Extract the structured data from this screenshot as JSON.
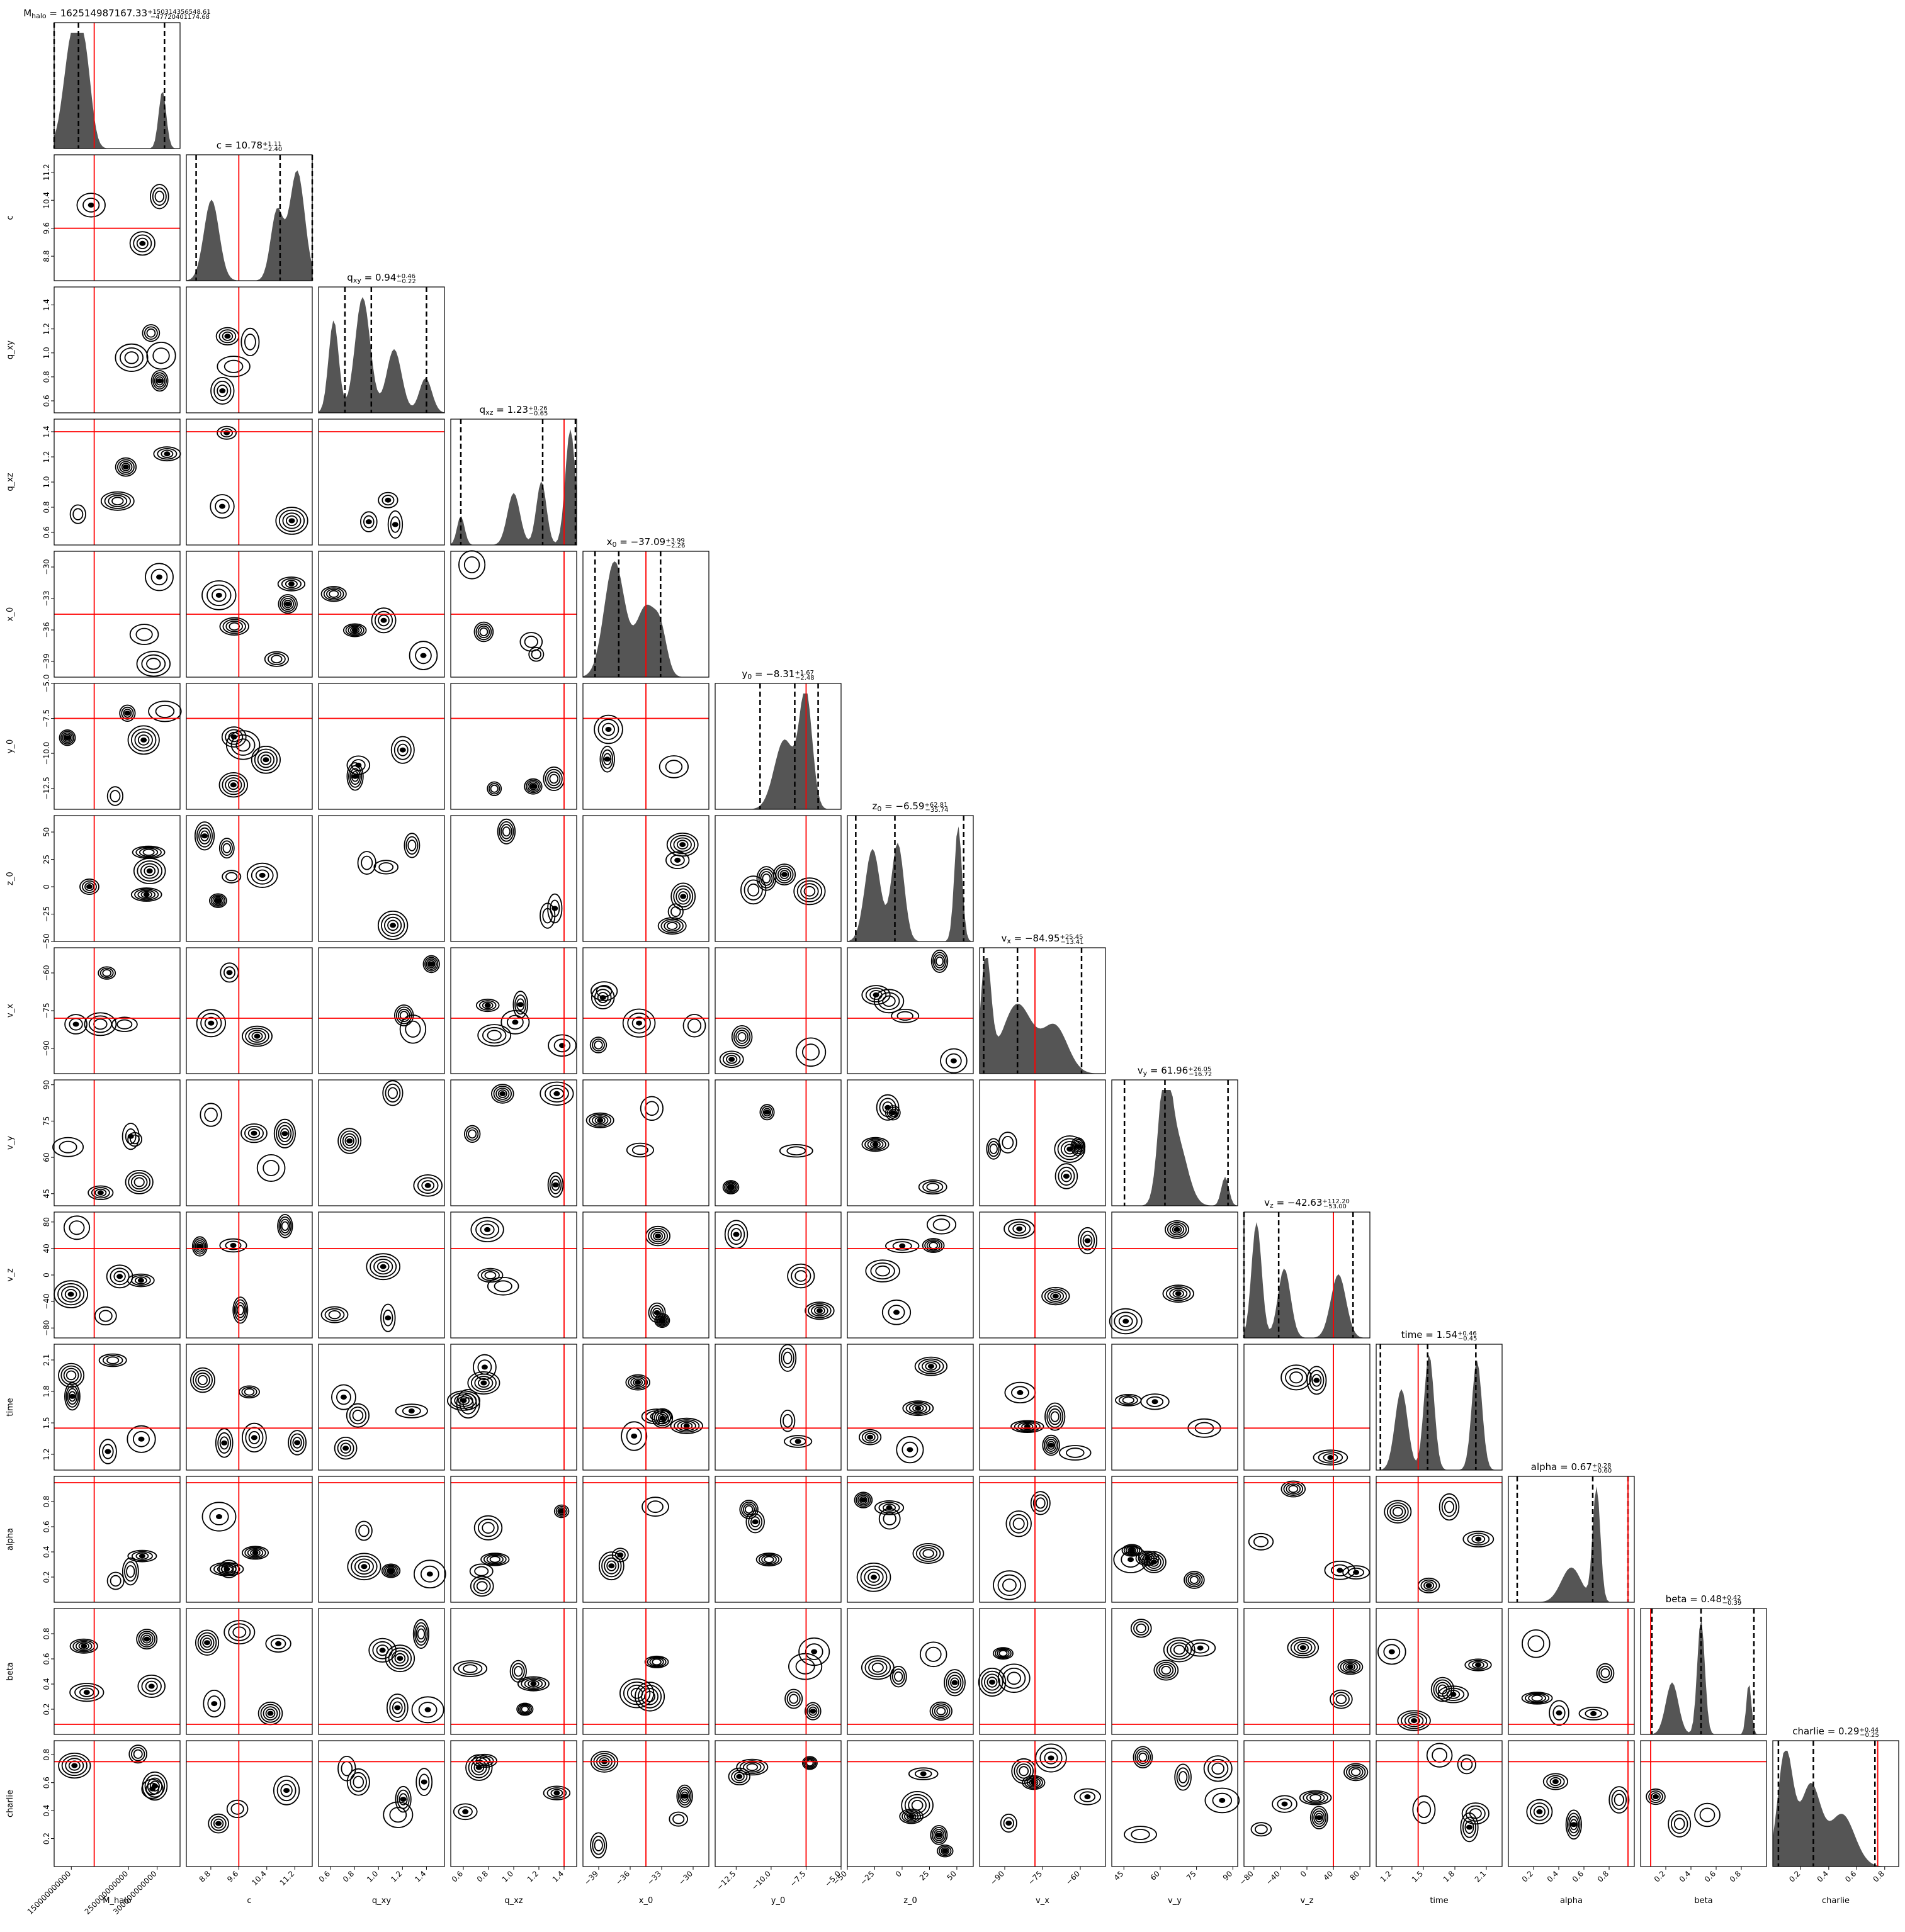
{
  "chart_data": {
    "type": "corner",
    "n_params": 14,
    "parameters": [
      {
        "name": "M_halo",
        "label": "M$_{halo}$",
        "range": [
          120000000000,
          340000000000
        ],
        "truth": 190000000000,
        "title": {
          "pre": "M",
          "sub": "halo",
          "text": " = 162514987167.33",
          "sup": "+150314356548.61",
          "inf": "−47720401174.68"
        },
        "quantiles": [
          114794585992.65,
          162514987167.33,
          312829343715.94
        ],
        "yticks": [],
        "xticks": [
          150000000000,
          250000000000,
          300000000000
        ],
        "xticklabels": [
          "150000000000",
          "250000000000",
          "300000000000"
        ],
        "modes": [
          [
            0.15,
            0.07,
            1.0
          ],
          [
            0.25,
            0.05,
            0.55
          ],
          [
            0.86,
            0.03,
            0.5
          ]
        ]
      },
      {
        "name": "c",
        "label": "c",
        "range": [
          8.1,
          11.7
        ],
        "truth": 9.6,
        "title": {
          "pre": "c",
          "sub": "",
          "text": " = 10.78",
          "sup": "+1.11",
          "inf": "−2.40"
        },
        "quantiles": [
          8.38,
          10.78,
          11.89
        ],
        "yticks": [
          8.8,
          9.6,
          10.4,
          11.2
        ],
        "yticklabels": [
          "8.8",
          "9.6",
          "10.4",
          "11.2"
        ],
        "xticks": [
          8.8,
          9.6,
          10.4,
          11.2
        ],
        "xticklabels": [
          "8.8",
          "9.6",
          "10.4",
          "11.2"
        ],
        "modes": [
          [
            0.2,
            0.06,
            0.7
          ],
          [
            0.72,
            0.05,
            0.6
          ],
          [
            0.88,
            0.06,
            0.95
          ]
        ]
      },
      {
        "name": "q_xy",
        "label": "q$_{xy}$",
        "range": [
          0.5,
          1.55
        ],
        "truth": null,
        "title": {
          "pre": "q",
          "sub": "xy",
          "text": " = 0.94",
          "sup": "+0.46",
          "inf": "−0.22"
        },
        "quantiles": [
          0.72,
          0.94,
          1.4
        ],
        "yticks": [
          0.6,
          0.8,
          1.0,
          1.2,
          1.4
        ],
        "yticklabels": [
          "0.6",
          "0.8",
          "1.0",
          "1.2",
          "1.4"
        ],
        "xticks": [
          0.6,
          0.8,
          1.0,
          1.2,
          1.4
        ],
        "xticklabels": [
          "0.6",
          "0.8",
          "1.0",
          "1.2",
          "1.4"
        ],
        "modes": [
          [
            0.12,
            0.04,
            0.8
          ],
          [
            0.35,
            0.06,
            1.0
          ],
          [
            0.6,
            0.06,
            0.55
          ],
          [
            0.85,
            0.05,
            0.3
          ]
        ]
      },
      {
        "name": "q_xz",
        "label": "q$_{xz}$",
        "range": [
          0.5,
          1.5
        ],
        "truth": 1.4,
        "title": {
          "pre": "q",
          "sub": "xz",
          "text": " = 1.23",
          "sup": "+0.26",
          "inf": "−0.65"
        },
        "quantiles": [
          0.58,
          1.23,
          1.49
        ],
        "yticks": [
          0.6,
          0.8,
          1.0,
          1.2,
          1.4
        ],
        "yticklabels": [
          "0.6",
          "0.8",
          "1.0",
          "1.2",
          "1.4"
        ],
        "xticks": [
          0.6,
          0.8,
          1.0,
          1.2,
          1.4
        ],
        "xticklabels": [
          "0.6",
          "0.8",
          "1.0",
          "1.2",
          "1.4"
        ],
        "modes": [
          [
            0.08,
            0.03,
            0.25
          ],
          [
            0.5,
            0.05,
            0.45
          ],
          [
            0.72,
            0.04,
            0.55
          ],
          [
            0.95,
            0.04,
            1.0
          ]
        ]
      },
      {
        "name": "x_0",
        "label": "x$_0$",
        "range": [
          -40.5,
          -28.5
        ],
        "truth": -34.5,
        "title": {
          "pre": "x",
          "sub": "0",
          "text": " = −37.09",
          "sup": "+3.99",
          "inf": "−2.26"
        },
        "quantiles": [
          -39.35,
          -37.09,
          -33.1
        ],
        "yticks": [
          -39,
          -36,
          -33,
          -30
        ],
        "yticklabels": [
          "−39",
          "−36",
          "−33",
          "−30"
        ],
        "xticks": [
          -39,
          -36,
          -33,
          -30
        ],
        "xticklabels": [
          "−39",
          "−36",
          "−33",
          "−30"
        ],
        "modes": [
          [
            0.25,
            0.08,
            1.0
          ],
          [
            0.5,
            0.08,
            0.6
          ],
          [
            0.62,
            0.05,
            0.3
          ]
        ]
      },
      {
        "name": "y_0",
        "label": "y$_0$",
        "range": [
          -14,
          -5
        ],
        "truth": -7.5,
        "title": {
          "pre": "y",
          "sub": "0",
          "text": " = −8.31",
          "sup": "+1.67",
          "inf": "−2.48"
        },
        "quantiles": [
          -10.79,
          -8.31,
          -6.64
        ],
        "yticks": [
          -12.5,
          -10.0,
          -7.5,
          -5.0
        ],
        "yticklabels": [
          "−12.5",
          "−10.0",
          "−7.5",
          "−5.0"
        ],
        "xticks": [
          -12.5,
          -10.0,
          -7.5,
          -5.0
        ],
        "xticklabels": [
          "−12.5",
          "−10.0",
          "−7.5",
          "−5.0"
        ],
        "modes": [
          [
            0.55,
            0.08,
            0.6
          ],
          [
            0.72,
            0.05,
            1.0
          ]
        ]
      },
      {
        "name": "z_0",
        "label": "z$_0$",
        "range": [
          -50,
          65
        ],
        "truth": null,
        "title": {
          "pre": "z",
          "sub": "0",
          "text": " = −6.59",
          "sup": "+62.81",
          "inf": "−35.74"
        },
        "quantiles": [
          -42.33,
          -6.59,
          56.22
        ],
        "yticks": [
          -50,
          -25,
          0,
          25,
          50
        ],
        "yticklabels": [
          "−50",
          "−25",
          "0",
          "25",
          "50"
        ],
        "xticks": [
          -50,
          -25,
          0,
          25,
          50
        ],
        "xticklabels": [
          "−50",
          "−25",
          "0",
          "25",
          "50"
        ],
        "modes": [
          [
            0.2,
            0.06,
            0.8
          ],
          [
            0.4,
            0.05,
            0.85
          ],
          [
            0.88,
            0.03,
            1.0
          ]
        ]
      },
      {
        "name": "v_x",
        "label": "v$_x$",
        "range": [
          -100,
          -50
        ],
        "truth": -78,
        "title": {
          "pre": "v",
          "sub": "x",
          "text": " = −84.95",
          "sup": "+25.45",
          "inf": "−13.41"
        },
        "quantiles": [
          -98.36,
          -84.95,
          -59.5
        ],
        "yticks": [
          -90,
          -75,
          -60
        ],
        "yticklabels": [
          "−90",
          "−75",
          "−60"
        ],
        "xticks": [
          -90,
          -75,
          -60
        ],
        "xticklabels": [
          "−90",
          "−75",
          "−60"
        ],
        "modes": [
          [
            0.05,
            0.04,
            1.0
          ],
          [
            0.3,
            0.12,
            0.6
          ],
          [
            0.6,
            0.1,
            0.4
          ]
        ]
      },
      {
        "name": "v_y",
        "label": "v$_y$",
        "range": [
          40,
          92
        ],
        "truth": null,
        "title": {
          "pre": "v",
          "sub": "y",
          "text": " = 61.96",
          "sup": "+26.05",
          "inf": "−16.72"
        },
        "quantiles": [
          45.24,
          61.96,
          88.01
        ],
        "yticks": [
          45,
          60,
          75,
          90
        ],
        "yticklabels": [
          "45",
          "60",
          "75",
          "90"
        ],
        "xticks": [
          45,
          60,
          75,
          90
        ],
        "xticklabels": [
          "45",
          "60",
          "75",
          "90"
        ],
        "modes": [
          [
            0.42,
            0.05,
            1.0
          ],
          [
            0.52,
            0.08,
            0.55
          ],
          [
            0.9,
            0.03,
            0.25
          ]
        ]
      },
      {
        "name": "v_z",
        "label": "v$_z$",
        "range": [
          -95,
          95
        ],
        "truth": 40,
        "title": {
          "pre": "v",
          "sub": "z",
          "text": " = −42.63",
          "sup": "+112.20",
          "inf": "−53.00"
        },
        "quantiles": [
          -95.63,
          -42.63,
          69.57
        ],
        "yticks": [
          -80,
          -40,
          0,
          40,
          80
        ],
        "yticklabels": [
          "−80",
          "−40",
          "0",
          "40",
          "80"
        ],
        "xticks": [
          -80,
          -40,
          0,
          40,
          80
        ],
        "xticklabels": [
          "−80",
          "−40",
          "0",
          "40",
          "80"
        ],
        "modes": [
          [
            0.1,
            0.04,
            1.0
          ],
          [
            0.32,
            0.05,
            0.6
          ],
          [
            0.75,
            0.06,
            0.55
          ]
        ]
      },
      {
        "name": "time",
        "label": "time",
        "range": [
          1.05,
          2.25
        ],
        "truth": 1.45,
        "title": {
          "pre": "time",
          "sub": "",
          "text": " = 1.54",
          "sup": "+0.46",
          "inf": "−0.45"
        },
        "quantiles": [
          1.09,
          1.54,
          2.0
        ],
        "yticks": [
          1.2,
          1.5,
          1.8,
          2.1
        ],
        "yticklabels": [
          "1.2",
          "1.5",
          "1.8",
          "2.1"
        ],
        "xticks": [
          1.2,
          1.5,
          1.8,
          2.1
        ],
        "xticklabels": [
          "1.2",
          "1.5",
          "1.8",
          "2.1"
        ],
        "modes": [
          [
            0.2,
            0.05,
            0.7
          ],
          [
            0.42,
            0.04,
            1.0
          ],
          [
            0.8,
            0.04,
            0.95
          ]
        ]
      },
      {
        "name": "alpha",
        "label": "alpha",
        "range": [
          0.0,
          1.0
        ],
        "truth": 0.95,
        "title": {
          "pre": "alpha",
          "sub": "",
          "text": " = 0.67",
          "sup": "+0.28",
          "inf": "−0.60"
        },
        "quantiles": [
          0.07,
          0.67,
          0.95
        ],
        "yticks": [
          0.2,
          0.4,
          0.6,
          0.8
        ],
        "yticklabels": [
          "0.2",
          "0.4",
          "0.6",
          "0.8"
        ],
        "xticks": [
          0.2,
          0.4,
          0.6,
          0.8
        ],
        "xticklabels": [
          "0.2",
          "0.4",
          "0.6",
          "0.8"
        ],
        "modes": [
          [
            0.5,
            0.08,
            0.3
          ],
          [
            0.7,
            0.03,
            1.0
          ]
        ]
      },
      {
        "name": "beta",
        "label": "beta",
        "range": [
          0.0,
          1.0
        ],
        "truth": 0.08,
        "title": {
          "pre": "beta",
          "sub": "",
          "text": " = 0.48",
          "sup": "+0.42",
          "inf": "−0.39"
        },
        "quantiles": [
          0.09,
          0.48,
          0.9
        ],
        "yticks": [
          0.2,
          0.4,
          0.6,
          0.8
        ],
        "yticklabels": [
          "0.2",
          "0.4",
          "0.6",
          "0.8"
        ],
        "xticks": [
          0.2,
          0.4,
          0.6,
          0.8
        ],
        "xticklabels": [
          "0.2",
          "0.4",
          "0.6",
          "0.8"
        ],
        "modes": [
          [
            0.25,
            0.05,
            0.45
          ],
          [
            0.48,
            0.03,
            1.0
          ],
          [
            0.86,
            0.02,
            0.45
          ]
        ]
      },
      {
        "name": "charlie",
        "label": "charlie",
        "range": [
          0.0,
          0.9
        ],
        "truth": 0.75,
        "title": {
          "pre": "charlie",
          "sub": "",
          "text": " = 0.29",
          "sup": "+0.44",
          "inf": "−0.25"
        },
        "quantiles": [
          0.04,
          0.29,
          0.73
        ],
        "yticks": [
          0.2,
          0.4,
          0.6,
          0.8
        ],
        "yticklabels": [
          "0.2",
          "0.4",
          "0.6",
          "0.8"
        ],
        "xticks": [
          0.2,
          0.4,
          0.6,
          0.8
        ],
        "xticklabels": [
          "0.2",
          "0.4",
          "0.6",
          "0.8"
        ],
        "modes": [
          [
            0.1,
            0.06,
            1.0
          ],
          [
            0.3,
            0.08,
            0.7
          ],
          [
            0.55,
            0.1,
            0.45
          ]
        ]
      }
    ],
    "colors": {
      "truth": "#ff0000",
      "hist": "#555555",
      "contour": "#000000",
      "quantile": "#000000"
    }
  }
}
